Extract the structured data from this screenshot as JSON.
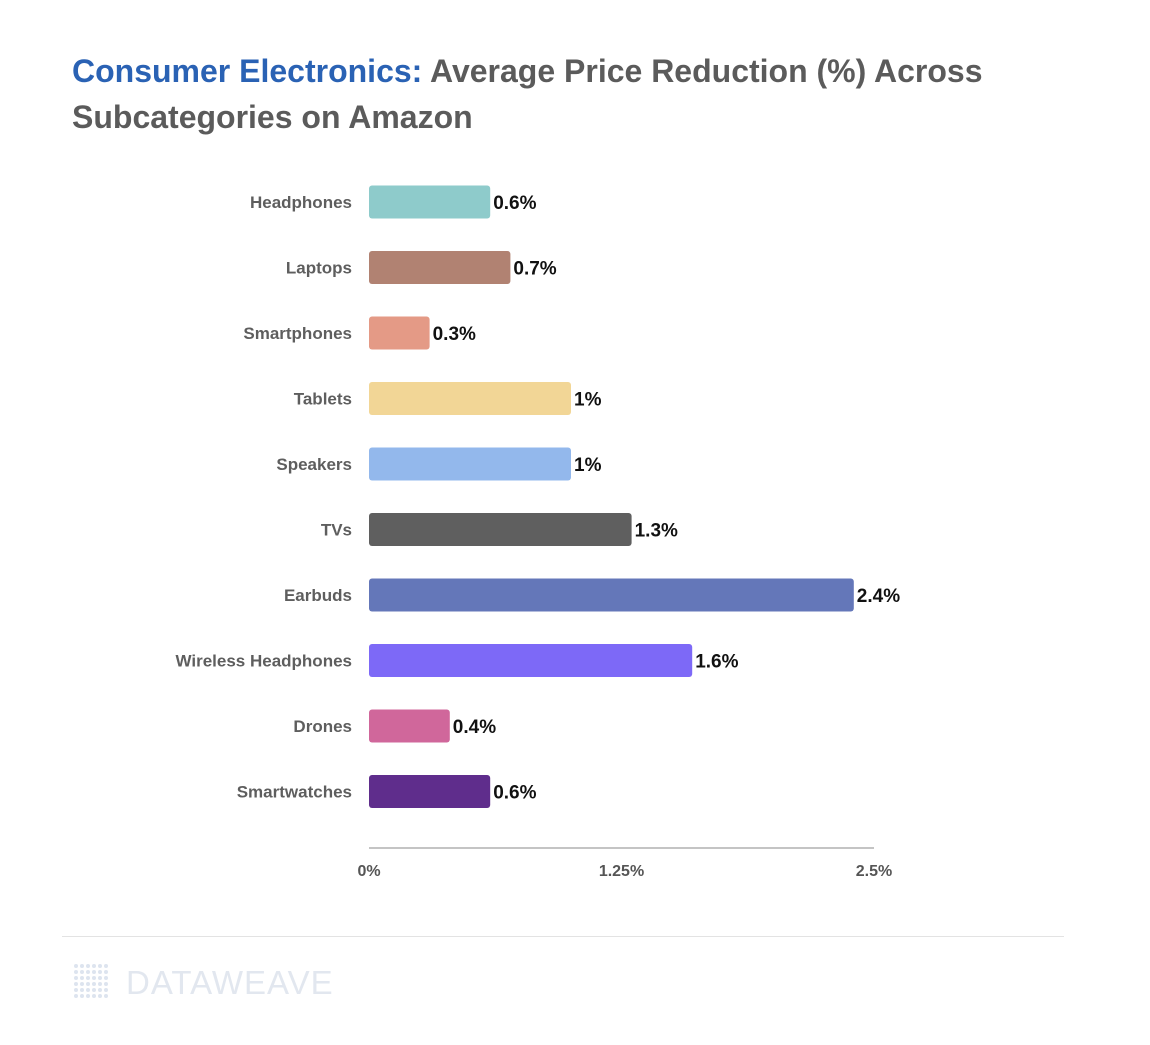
{
  "title": {
    "highlight": "Consumer Electronics:",
    "rest": " Average Price Reduction (%) Across Subcategories on Amazon"
  },
  "footer": {
    "brand": "DATAWEAVE"
  },
  "chart_data": {
    "type": "bar",
    "orientation": "horizontal",
    "title": "Consumer Electronics: Average Price Reduction (%) Across Subcategories on Amazon",
    "xlabel": "",
    "ylabel": "",
    "xlim": [
      0,
      2.5
    ],
    "x_ticks": [
      0,
      1.25,
      2.5
    ],
    "x_tick_labels": [
      "0%",
      "1.25%",
      "2.5%"
    ],
    "grid": false,
    "legend": "none",
    "categories": [
      "Headphones",
      "Laptops",
      "Smartphones",
      "Tablets",
      "Speakers",
      "TVs",
      "Earbuds",
      "Wireless Headphones",
      "Drones",
      "Smartwatches"
    ],
    "values": [
      0.6,
      0.7,
      0.3,
      1.0,
      1.0,
      1.3,
      2.4,
      1.6,
      0.4,
      0.6
    ],
    "value_labels": [
      "0.6%",
      "0.7%",
      "0.3%",
      "1%",
      "1%",
      "1.3%",
      "2.4%",
      "1.6%",
      "0.4%",
      "0.6%"
    ],
    "colors": [
      "#8ecbcb",
      "#b18272",
      "#e49a86",
      "#f2d696",
      "#93b8ec",
      "#5f5f5f",
      "#6477b9",
      "#7d69f7",
      "#d0679b",
      "#5f2d8c"
    ]
  }
}
